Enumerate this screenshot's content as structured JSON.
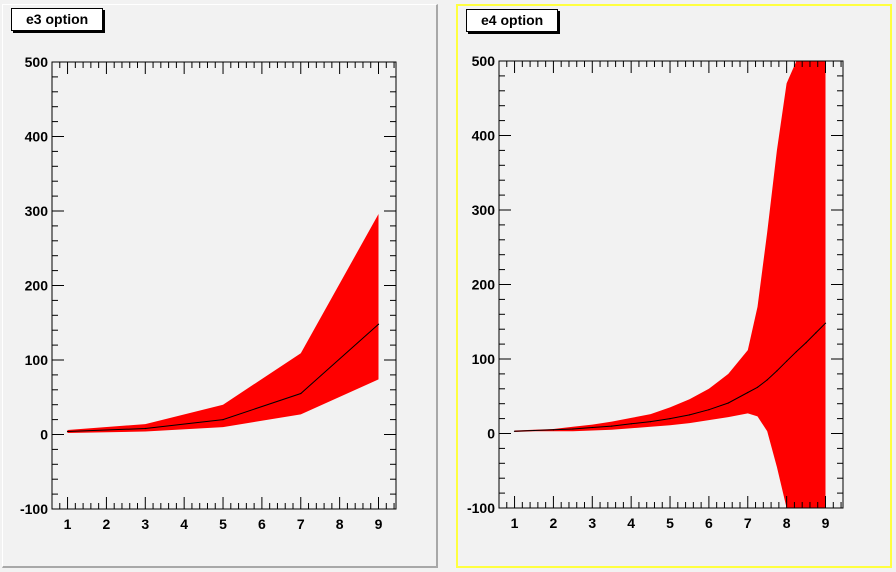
{
  "pads": [
    {
      "title": "e3 option",
      "selected": false
    },
    {
      "title": "e4 option",
      "selected": true
    }
  ],
  "colors": {
    "band": "#ff0000",
    "line": "#000000",
    "frame": "#000000",
    "pad_background": "#f2f2f2",
    "selected_border": "#ffff40"
  },
  "chart_data": [
    {
      "type": "area",
      "title": "e3 option",
      "draw_option": "e3",
      "x": [
        1,
        3,
        5,
        7,
        9
      ],
      "y": [
        4,
        8,
        20,
        55,
        148
      ],
      "y_low": [
        2,
        4,
        10,
        27,
        74
      ],
      "y_high": [
        6,
        14,
        40,
        109,
        296
      ],
      "xlim": [
        0.6,
        9.45
      ],
      "ylim": [
        -100,
        500
      ],
      "x_ticks": [
        1,
        2,
        3,
        4,
        5,
        6,
        7,
        8,
        9
      ],
      "y_ticks": [
        -100,
        0,
        100,
        200,
        300,
        400,
        500
      ],
      "xlabel": "",
      "ylabel": "",
      "grid": false,
      "legend": "none"
    },
    {
      "type": "area",
      "title": "e4 option",
      "draw_option": "e4",
      "x": [
        1,
        1.5,
        2,
        2.5,
        3,
        3.5,
        4,
        4.5,
        5,
        5.5,
        6,
        6.5,
        7,
        7.25,
        7.5,
        7.75,
        8,
        8.25,
        8.5,
        8.75,
        9
      ],
      "y": [
        3,
        4,
        5,
        6,
        8,
        10,
        13,
        16,
        20,
        25,
        32,
        41,
        55,
        62,
        72,
        84,
        97,
        110,
        122,
        135,
        148
      ],
      "y_low": [
        2,
        3,
        3,
        3,
        4,
        5,
        7,
        9,
        11,
        14,
        18,
        22,
        27,
        23,
        3,
        -45,
        -100,
        -100,
        -100,
        -100,
        -100
      ],
      "y_high": [
        4,
        5,
        6,
        9,
        12,
        16,
        21,
        26,
        35,
        46,
        60,
        80,
        112,
        170,
        270,
        380,
        470,
        500,
        500,
        500,
        500
      ],
      "xlim": [
        0.6,
        9.45
      ],
      "ylim": [
        -100,
        500
      ],
      "x_ticks": [
        1,
        2,
        3,
        4,
        5,
        6,
        7,
        8,
        9
      ],
      "y_ticks": [
        -100,
        0,
        100,
        200,
        300,
        400,
        500
      ],
      "xlabel": "",
      "ylabel": "",
      "grid": false,
      "legend": "none"
    }
  ]
}
